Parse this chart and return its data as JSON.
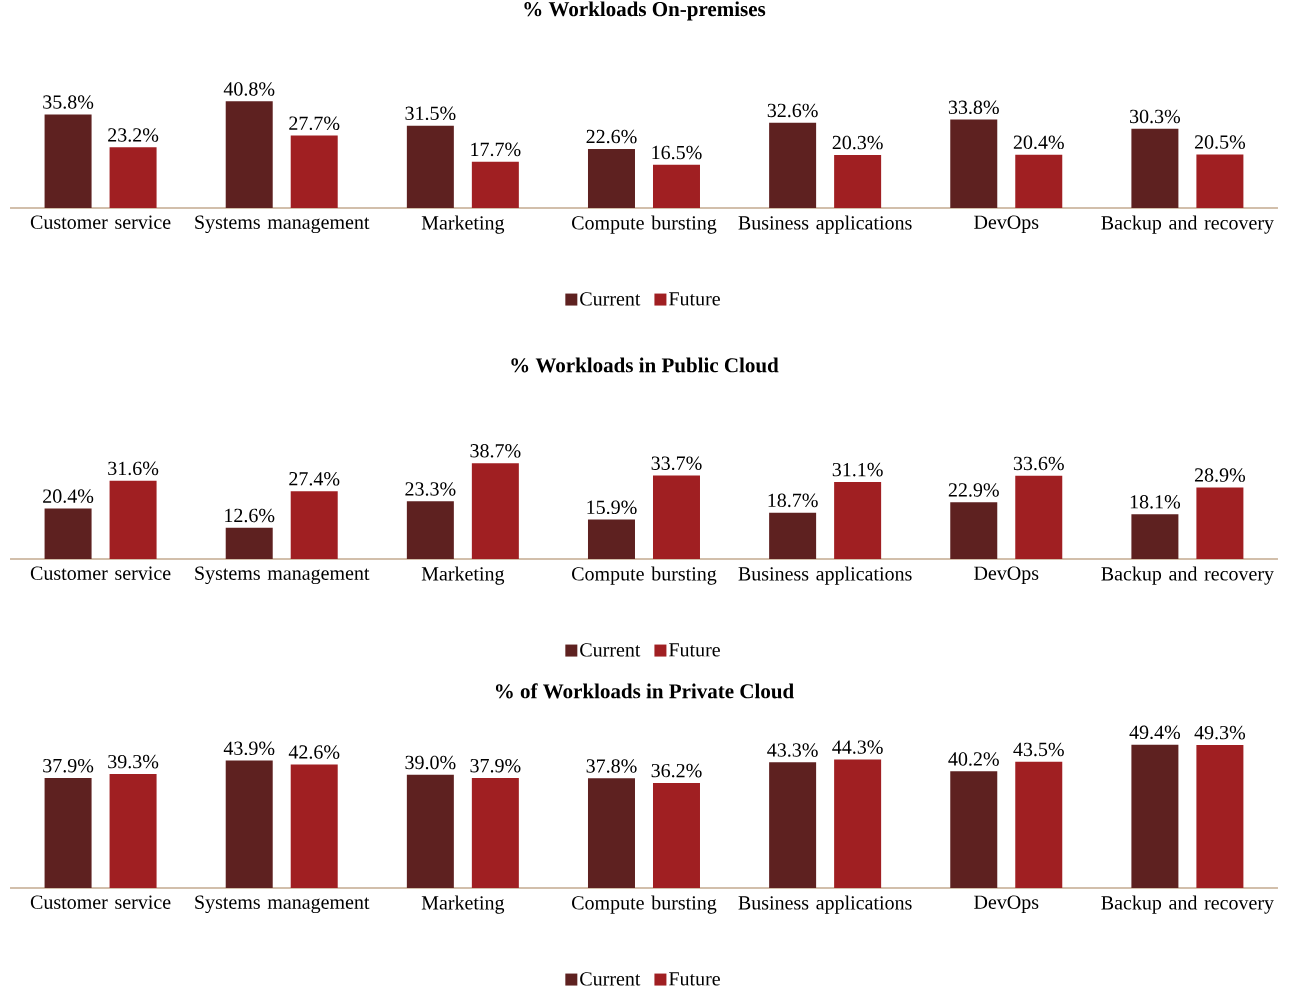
{
  "chart_data": [
    {
      "type": "bar",
      "title": "% Workloads On-premises",
      "categories": [
        "Customer service",
        "Systems management",
        "Marketing",
        "Compute bursting",
        "Business applications",
        "DevOps",
        "Backup and recovery"
      ],
      "legend": "bottom",
      "series": [
        {
          "name": "Current",
          "color": "#5e2120",
          "values": [
            35.8,
            40.8,
            31.5,
            22.6,
            32.6,
            33.8,
            30.3
          ],
          "value_labels": [
            "35.8%",
            "40.8%",
            "31.5%",
            "22.6%",
            "32.6%",
            "33.8%",
            "30.3%"
          ]
        },
        {
          "name": "Future",
          "color": "#a01f22",
          "values": [
            23.2,
            27.7,
            17.7,
            16.5,
            20.3,
            20.4,
            20.5
          ],
          "value_labels": [
            "23.2%",
            "27.7%",
            "17.7%",
            "16.5%",
            "20.3%",
            "20.4%",
            "20.5%"
          ]
        }
      ]
    },
    {
      "type": "bar",
      "title": "% Workloads in Public Cloud",
      "categories": [
        "Customer service",
        "Systems management",
        "Marketing",
        "Compute bursting",
        "Business applications",
        "DevOps",
        "Backup and recovery"
      ],
      "legend": "bottom",
      "series": [
        {
          "name": "Current",
          "color": "#5e2120",
          "values": [
            20.4,
            12.6,
            23.3,
            15.9,
            18.7,
            22.9,
            18.1
          ],
          "value_labels": [
            "20.4%",
            "12.6%",
            "23.3%",
            "15.9%",
            "18.7%",
            "22.9%",
            "18.1%"
          ]
        },
        {
          "name": "Future",
          "color": "#a01f22",
          "values": [
            31.6,
            27.4,
            38.7,
            33.7,
            31.1,
            33.6,
            28.9
          ],
          "value_labels": [
            "31.6%",
            "27.4%",
            "38.7%",
            "33.7%",
            "31.1%",
            "33.6%",
            "28.9%"
          ]
        }
      ]
    },
    {
      "type": "bar",
      "title": "% of Workloads in Private Cloud",
      "categories": [
        "Customer service",
        "Systems management",
        "Marketing",
        "Compute bursting",
        "Business applications",
        "DevOps",
        "Backup and recovery"
      ],
      "legend": "bottom",
      "series": [
        {
          "name": "Current",
          "color": "#5e2120",
          "values": [
            37.9,
            43.9,
            39.0,
            37.8,
            43.3,
            40.2,
            49.4
          ],
          "value_labels": [
            "37.9%",
            "43.9%",
            "39.0%",
            "37.8%",
            "43.3%",
            "40.2%",
            "49.4%"
          ]
        },
        {
          "name": "Future",
          "color": "#a01f22",
          "values": [
            39.3,
            42.6,
            37.9,
            36.2,
            44.3,
            43.5,
            49.3
          ],
          "value_labels": [
            "39.3%",
            "42.6%",
            "37.9%",
            "36.2%",
            "44.3%",
            "43.5%",
            "49.3%"
          ]
        }
      ]
    }
  ]
}
